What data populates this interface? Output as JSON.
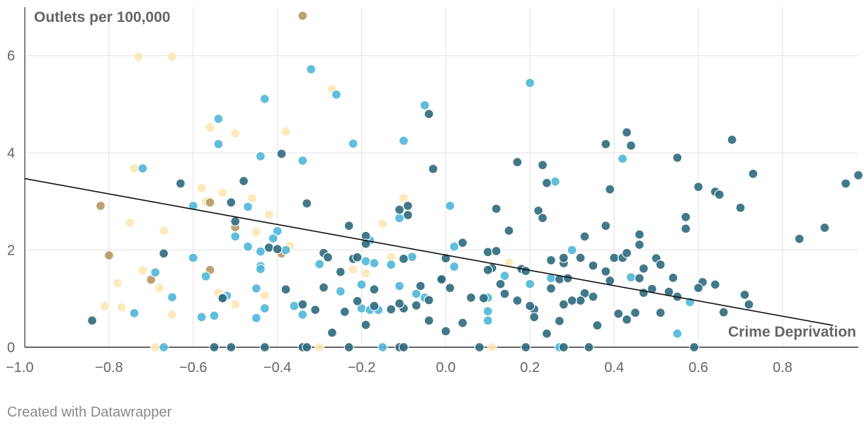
{
  "chart_data": {
    "type": "scatter",
    "ylabel": "Outlets per 100,000",
    "xlabel": "Crime Deprivation",
    "xlim": [
      -1.0,
      0.98
    ],
    "ylim": [
      0,
      7
    ],
    "x_ticks": [
      "−1.0",
      "−0.8",
      "−0.6",
      "−0.4",
      "−0.2",
      "0.0",
      "0.2",
      "0.4",
      "0.6",
      "0.8"
    ],
    "x_tick_values": [
      -1.0,
      -0.8,
      -0.6,
      -0.4,
      -0.2,
      0.0,
      0.2,
      0.4,
      0.6,
      0.8
    ],
    "y_ticks": [
      "0",
      "2",
      "4",
      "6"
    ],
    "y_tick_values": [
      0,
      2,
      4,
      6
    ],
    "grid": true,
    "trendline": {
      "x": [
        -1.0,
        0.92
      ],
      "y": [
        3.47,
        0.45
      ]
    },
    "colors": {
      "dark_teal": "#2e6b7d",
      "light_blue": "#4fb8d9",
      "light_yellow": "#fde7b3",
      "tan": "#b59a62"
    },
    "series": [
      {
        "color_key": "light_yellow",
        "points": [
          [
            -0.73,
            5.98
          ],
          [
            -0.65,
            5.98
          ],
          [
            -0.56,
            4.52
          ],
          [
            -0.5,
            4.4
          ],
          [
            -0.38,
            4.44
          ],
          [
            -0.74,
            3.68
          ],
          [
            -0.58,
            3.28
          ],
          [
            -0.53,
            3.18
          ],
          [
            -0.46,
            3.07
          ],
          [
            -0.42,
            2.73
          ],
          [
            -0.75,
            2.56
          ],
          [
            -0.67,
            2.4
          ],
          [
            -0.45,
            2.37
          ],
          [
            -0.37,
            2.09
          ],
          [
            -0.27,
            5.31
          ],
          [
            -0.1,
            3.07
          ],
          [
            -0.15,
            2.54
          ],
          [
            -0.13,
            1.85
          ],
          [
            -0.72,
            1.58
          ],
          [
            -0.78,
            1.32
          ],
          [
            -0.54,
            1.12
          ],
          [
            -0.43,
            1.07
          ],
          [
            -0.81,
            0.84
          ],
          [
            -0.77,
            0.82
          ],
          [
            -0.65,
            0.67
          ],
          [
            -0.68,
            1.22
          ],
          [
            -0.19,
            1.52
          ],
          [
            -0.22,
            1.6
          ],
          [
            0.15,
            1.75
          ],
          [
            0.35,
            1.7
          ],
          [
            -0.69,
            0.0
          ],
          [
            -0.3,
            0.0
          ],
          [
            0.11,
            0.0
          ],
          [
            -0.57,
            3.0
          ],
          [
            -0.5,
            0.88
          ]
        ]
      },
      {
        "color_key": "tan",
        "points": [
          [
            -0.34,
            6.82
          ],
          [
            -0.82,
            2.91
          ],
          [
            -0.56,
            2.98
          ],
          [
            -0.8,
            1.89
          ],
          [
            -0.5,
            2.47
          ],
          [
            -0.39,
            1.93
          ],
          [
            -0.7,
            1.39
          ],
          [
            -0.56,
            1.59
          ]
        ]
      },
      {
        "color_key": "light_blue",
        "points": [
          [
            -0.32,
            5.72
          ],
          [
            -0.43,
            5.11
          ],
          [
            -0.26,
            5.2
          ],
          [
            -0.54,
            4.7
          ],
          [
            -0.54,
            4.18
          ],
          [
            -0.22,
            4.19
          ],
          [
            -0.44,
            3.93
          ],
          [
            -0.34,
            3.84
          ],
          [
            -0.1,
            4.25
          ],
          [
            -0.05,
            4.98
          ],
          [
            0.2,
            5.44
          ],
          [
            0.42,
            3.88
          ],
          [
            0.26,
            3.41
          ],
          [
            -0.72,
            3.68
          ],
          [
            -0.6,
            2.91
          ],
          [
            -0.47,
            2.89
          ],
          [
            -0.11,
            2.66
          ],
          [
            0.01,
            2.91
          ],
          [
            -0.5,
            2.28
          ],
          [
            -0.4,
            2.39
          ],
          [
            -0.41,
            2.24
          ],
          [
            -0.47,
            2.07
          ],
          [
            -0.44,
            1.97
          ],
          [
            -0.38,
            2.0
          ],
          [
            -0.6,
            1.84
          ],
          [
            -0.57,
            1.46
          ],
          [
            -0.44,
            1.67
          ],
          [
            -0.44,
            1.61
          ],
          [
            -0.3,
            1.71
          ],
          [
            -0.18,
            2.2
          ],
          [
            -0.19,
            1.77
          ],
          [
            -0.17,
            1.73
          ],
          [
            -0.13,
            1.7
          ],
          [
            -0.2,
            1.29
          ],
          [
            -0.25,
            1.15
          ],
          [
            -0.11,
            1.26
          ],
          [
            -0.08,
            1.86
          ],
          [
            0.02,
            2.07
          ],
          [
            0.02,
            1.66
          ],
          [
            -0.05,
            1.02
          ],
          [
            -0.07,
            1.1
          ],
          [
            -0.69,
            1.54
          ],
          [
            -0.65,
            1.03
          ],
          [
            -0.74,
            0.7
          ],
          [
            -0.58,
            0.62
          ],
          [
            -0.52,
            1.06
          ],
          [
            -0.53,
            1.02
          ],
          [
            -0.45,
            1.21
          ],
          [
            -0.43,
            0.8
          ],
          [
            -0.45,
            0.6
          ],
          [
            -0.36,
            0.85
          ],
          [
            -0.34,
            0.67
          ],
          [
            -0.2,
            0.8
          ],
          [
            -0.18,
            0.77
          ],
          [
            -0.16,
            0.77
          ],
          [
            0.1,
            0.74
          ],
          [
            0.1,
            0.55
          ],
          [
            0.14,
            1.47
          ],
          [
            0.2,
            1.3
          ],
          [
            0.25,
            1.42
          ],
          [
            0.3,
            2.0
          ],
          [
            0.44,
            1.44
          ],
          [
            0.55,
            0.28
          ],
          [
            0.58,
            0.93
          ],
          [
            -0.67,
            0.0
          ],
          [
            -0.15,
            0.0
          ],
          [
            0.27,
            0.0
          ],
          [
            -0.55,
            0.65
          ],
          [
            0.1,
            1.02
          ]
        ]
      },
      {
        "color_key": "dark_teal",
        "points": [
          [
            -0.84,
            0.55
          ],
          [
            -0.67,
            1.93
          ],
          [
            -0.63,
            3.37
          ],
          [
            -0.51,
            2.98
          ],
          [
            -0.5,
            2.59
          ],
          [
            -0.48,
            3.42
          ],
          [
            -0.42,
            2.05
          ],
          [
            -0.4,
            2.02
          ],
          [
            -0.39,
            3.98
          ],
          [
            -0.33,
            2.96
          ],
          [
            -0.29,
            1.94
          ],
          [
            -0.28,
            1.85
          ],
          [
            -0.25,
            1.55
          ],
          [
            -0.23,
            2.5
          ],
          [
            -0.22,
            1.82
          ],
          [
            -0.19,
            2.29
          ],
          [
            -0.19,
            2.13
          ],
          [
            -0.17,
            1.19
          ],
          [
            -0.11,
            2.83
          ],
          [
            -0.09,
            2.91
          ],
          [
            -0.09,
            2.72
          ],
          [
            -0.1,
            1.82
          ],
          [
            -0.06,
            1.26
          ],
          [
            -0.03,
            3.67
          ],
          [
            -0.04,
            4.8
          ],
          [
            -0.01,
            1.38
          ],
          [
            0.0,
            1.83
          ],
          [
            0.04,
            2.15
          ],
          [
            0.06,
            1.02
          ],
          [
            0.1,
            1.96
          ],
          [
            0.12,
            2.85
          ],
          [
            0.12,
            1.98
          ],
          [
            0.11,
            1.63
          ],
          [
            0.14,
            1.1
          ],
          [
            0.15,
            2.4
          ],
          [
            0.17,
            3.81
          ],
          [
            0.18,
            1.61
          ],
          [
            0.19,
            1.57
          ],
          [
            0.22,
            2.81
          ],
          [
            0.23,
            2.66
          ],
          [
            0.23,
            3.75
          ],
          [
            0.24,
            3.38
          ],
          [
            0.25,
            1.79
          ],
          [
            0.27,
            1.4
          ],
          [
            0.28,
            1.73
          ],
          [
            0.28,
            1.84
          ],
          [
            0.29,
            1.42
          ],
          [
            0.32,
            1.84
          ],
          [
            0.33,
            2.28
          ],
          [
            0.35,
            1.68
          ],
          [
            0.38,
            2.5
          ],
          [
            0.38,
            1.56
          ],
          [
            0.39,
            3.25
          ],
          [
            0.4,
            1.84
          ],
          [
            0.42,
            1.84
          ],
          [
            0.43,
            1.94
          ],
          [
            0.43,
            4.42
          ],
          [
            0.38,
            4.18
          ],
          [
            0.44,
            4.15
          ],
          [
            0.46,
            2.32
          ],
          [
            0.46,
            2.11
          ],
          [
            0.46,
            1.42
          ],
          [
            0.47,
            1.62
          ],
          [
            0.5,
            1.83
          ],
          [
            0.51,
            1.7
          ],
          [
            0.54,
            1.43
          ],
          [
            0.55,
            3.9
          ],
          [
            0.57,
            2.68
          ],
          [
            0.57,
            2.44
          ],
          [
            0.6,
            3.3
          ],
          [
            0.61,
            1.34
          ],
          [
            0.64,
            3.2
          ],
          [
            0.65,
            3.14
          ],
          [
            0.68,
            4.27
          ],
          [
            0.7,
            2.87
          ],
          [
            0.73,
            3.57
          ],
          [
            0.95,
            3.37
          ],
          [
            0.98,
            3.54
          ],
          [
            0.9,
            2.46
          ],
          [
            0.84,
            2.23
          ],
          [
            0.72,
            0.88
          ],
          [
            0.71,
            1.08
          ],
          [
            0.66,
            0.72
          ],
          [
            0.64,
            1.29
          ],
          [
            0.55,
            1.04
          ],
          [
            0.53,
            1.14
          ],
          [
            0.51,
            0.71
          ],
          [
            0.47,
            1.12
          ],
          [
            0.45,
            0.71
          ],
          [
            0.43,
            0.57
          ],
          [
            0.41,
            0.69
          ],
          [
            0.39,
            1.37
          ],
          [
            0.36,
            0.45
          ],
          [
            0.35,
            1.04
          ],
          [
            0.33,
            1.11
          ],
          [
            0.32,
            0.96
          ],
          [
            0.3,
            0.96
          ],
          [
            0.28,
            0.88
          ],
          [
            0.27,
            0.54
          ],
          [
            0.25,
            1.21
          ],
          [
            0.24,
            0.28
          ],
          [
            0.21,
            0.78
          ],
          [
            0.21,
            0.62
          ],
          [
            0.2,
            0.85
          ],
          [
            0.17,
            0.96
          ],
          [
            0.13,
            1.3
          ],
          [
            0.09,
            1.01
          ],
          [
            0.04,
            0.5
          ],
          [
            0.01,
            1.22
          ],
          [
            0.0,
            0.33
          ],
          [
            -0.04,
            0.97
          ],
          [
            -0.04,
            0.55
          ],
          [
            -0.07,
            0.86
          ],
          [
            -0.1,
            0.8
          ],
          [
            -0.11,
            0.9
          ],
          [
            -0.13,
            0.78
          ],
          [
            -0.17,
            0.85
          ],
          [
            -0.19,
            0.46
          ],
          [
            -0.21,
            0.95
          ],
          [
            -0.24,
            0.73
          ],
          [
            -0.27,
            0.3
          ],
          [
            -0.29,
            1.23
          ],
          [
            -0.31,
            0.77
          ],
          [
            -0.34,
            0.88
          ],
          [
            -0.38,
            1.19
          ],
          [
            -0.43,
            0.0
          ],
          [
            -0.34,
            0.0
          ],
          [
            -0.23,
            0.0
          ],
          [
            -0.11,
            0.0
          ],
          [
            -0.1,
            0.0
          ],
          [
            0.08,
            0.0
          ],
          [
            0.19,
            0.0
          ],
          [
            0.28,
            0.0
          ],
          [
            0.34,
            0.0
          ],
          [
            0.59,
            0.0
          ],
          [
            -0.55,
            0.0
          ],
          [
            -0.51,
            0.0
          ],
          [
            -0.33,
            0.0
          ],
          [
            0.6,
            1.22
          ],
          [
            0.49,
            1.2
          ],
          [
            -0.01,
            1.4
          ],
          [
            0.1,
            1.59
          ],
          [
            -0.21,
            1.85
          ],
          [
            -0.53,
            1.01
          ]
        ]
      }
    ]
  },
  "footer": {
    "credit": "Created with Datawrapper"
  }
}
